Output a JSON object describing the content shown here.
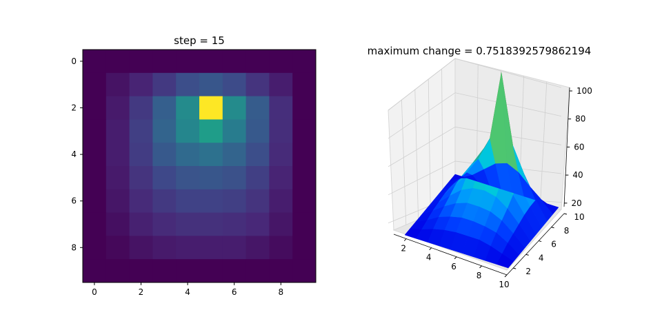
{
  "chart_data": [
    {
      "type": "heatmap",
      "title": "step = 15",
      "xticks": [
        "0",
        "2",
        "4",
        "6",
        "8"
      ],
      "yticks": [
        "0",
        "2",
        "4",
        "6",
        "8"
      ],
      "xlim": [
        -0.5,
        9.5
      ],
      "ylim": [
        9.5,
        -0.5
      ],
      "colormap": "viridis",
      "vmin": 0,
      "vmax": 100,
      "values": [
        [
          0,
          0,
          0,
          0,
          0,
          0,
          0,
          0,
          0,
          0
        ],
        [
          0,
          5,
          10,
          17,
          24,
          27,
          23,
          15,
          8,
          0
        ],
        [
          0,
          7,
          17,
          30,
          48,
          100,
          48,
          29,
          13,
          0
        ],
        [
          0,
          8,
          19,
          32,
          46,
          55,
          42,
          28,
          13,
          0
        ],
        [
          0,
          8,
          18,
          28,
          34,
          37,
          32,
          24,
          12,
          0
        ],
        [
          0,
          7,
          15,
          22,
          26,
          27,
          25,
          19,
          10,
          0
        ],
        [
          0,
          6,
          12,
          17,
          20,
          20,
          19,
          15,
          8,
          0
        ],
        [
          0,
          4,
          9,
          12,
          14,
          14,
          13,
          11,
          6,
          0
        ],
        [
          0,
          2,
          5,
          7,
          8,
          8,
          8,
          6,
          3,
          0
        ],
        [
          0,
          0,
          0,
          0,
          0,
          0,
          0,
          0,
          0,
          0
        ]
      ]
    },
    {
      "type": "surface3d",
      "title": "maximum change = 0.7518392579862194",
      "xticks": [
        "2",
        "4",
        "6",
        "8",
        "10"
      ],
      "yticks": [
        "2",
        "4",
        "6",
        "8",
        "10"
      ],
      "zticks": [
        "20",
        "40",
        "60",
        "80",
        "100"
      ],
      "xlim": [
        1,
        10
      ],
      "ylim": [
        1,
        10
      ],
      "zlim": [
        15,
        100
      ],
      "colormap": "jet-like",
      "peak": {
        "x": 6,
        "y": 3,
        "z": 100
      },
      "note_values": "same 10x10 field as heatmap"
    }
  ]
}
